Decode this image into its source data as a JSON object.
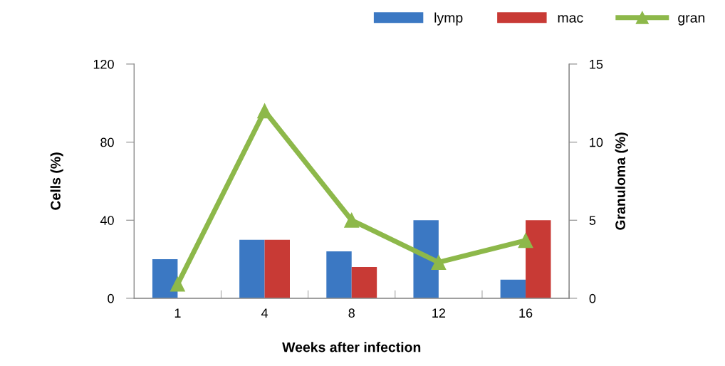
{
  "chart_data": {
    "type": "bar",
    "xlabel": "Weeks after infection",
    "ylabel": "Cells (%)",
    "y2label": "Granuloma (%)",
    "categories": [
      "1",
      "4",
      "8",
      "12",
      "16"
    ],
    "series": [
      {
        "name": "lymp",
        "color": "#3b78c3",
        "values": [
          20,
          30,
          24,
          40,
          9.5
        ]
      },
      {
        "name": "mac",
        "color": "#c83a35",
        "values": [
          0,
          30,
          16,
          0,
          40
        ]
      },
      {
        "name": "gran",
        "type": "line",
        "axis": "y2",
        "color": "#8db84a",
        "marker": "triangle",
        "values": [
          0.9,
          12,
          5,
          2.3,
          3.7
        ]
      }
    ],
    "ylim": [
      0,
      120
    ],
    "yticks": [
      0,
      40,
      80,
      120
    ],
    "y2lim": [
      0,
      15
    ],
    "y2ticks": [
      0,
      5,
      10,
      15
    ],
    "grid": false,
    "legend": "top right"
  }
}
